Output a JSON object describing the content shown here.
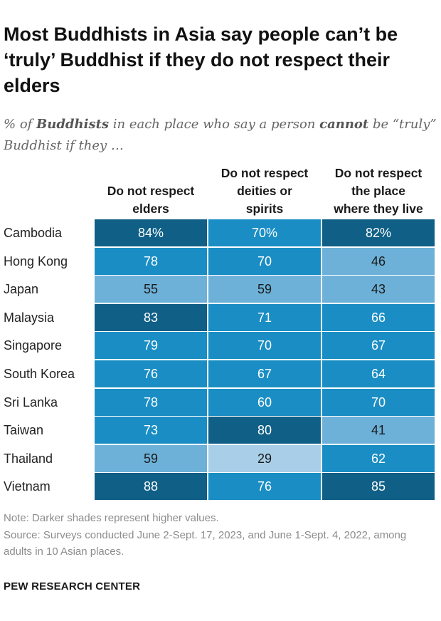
{
  "title": "Most Buddhists in Asia say people can’t be ‘truly’ Buddhist if they do not respect their elders",
  "subtitle": {
    "prefix": "% of ",
    "bold1": "Buddhists",
    "middle": " in each place who say a person ",
    "bold2": "cannot",
    "suffix": " be “truly” Buddhist if they …"
  },
  "chart_data": {
    "type": "table",
    "columns": [
      "Do not respect elders",
      "Do not respect deities or spirits",
      "Do not respect the place where they live"
    ],
    "column_lines": [
      [
        "Do not respect",
        "elders"
      ],
      [
        "Do not respect",
        "deities or",
        "spirits"
      ],
      [
        "Do not respect",
        "the place",
        "where they live"
      ]
    ],
    "rows": [
      {
        "label": "Cambodia",
        "values": [
          84,
          70,
          82
        ],
        "display": [
          "84%",
          "70%",
          "82%"
        ]
      },
      {
        "label": "Hong Kong",
        "values": [
          78,
          70,
          46
        ],
        "display": [
          "78",
          "70",
          "46"
        ]
      },
      {
        "label": "Japan",
        "values": [
          55,
          59,
          43
        ],
        "display": [
          "55",
          "59",
          "43"
        ]
      },
      {
        "label": "Malaysia",
        "values": [
          83,
          71,
          66
        ],
        "display": [
          "83",
          "71",
          "66"
        ]
      },
      {
        "label": "Singapore",
        "values": [
          79,
          70,
          67
        ],
        "display": [
          "79",
          "70",
          "67"
        ]
      },
      {
        "label": "South Korea",
        "values": [
          76,
          67,
          64
        ],
        "display": [
          "76",
          "67",
          "64"
        ]
      },
      {
        "label": "Sri Lanka",
        "values": [
          78,
          60,
          70
        ],
        "display": [
          "78",
          "60",
          "70"
        ]
      },
      {
        "label": "Taiwan",
        "values": [
          73,
          80,
          41
        ],
        "display": [
          "73",
          "80",
          "41"
        ]
      },
      {
        "label": "Thailand",
        "values": [
          59,
          29,
          62
        ],
        "display": [
          "59",
          "29",
          "62"
        ]
      },
      {
        "label": "Vietnam",
        "values": [
          88,
          76,
          85
        ],
        "display": [
          "88",
          "76",
          "85"
        ]
      }
    ],
    "shading": [
      {
        "min": 80,
        "color": "#0f5f86",
        "text": "#ffffff"
      },
      {
        "min": 60,
        "color": "#1a8ec4",
        "text": "#ffffff"
      },
      {
        "min": 40,
        "color": "#6db1d9",
        "text": "#1a1a1a"
      },
      {
        "min": 0,
        "color": "#a9cfe8",
        "text": "#1a1a1a"
      }
    ]
  },
  "notes": {
    "note": "Note: Darker shades represent higher values.",
    "source": "Source: Surveys conducted June 2-Sept. 17, 2023, and June 1-Sept. 4, 2022, among adults in 10 Asian places."
  },
  "credit": "PEW RESEARCH CENTER"
}
